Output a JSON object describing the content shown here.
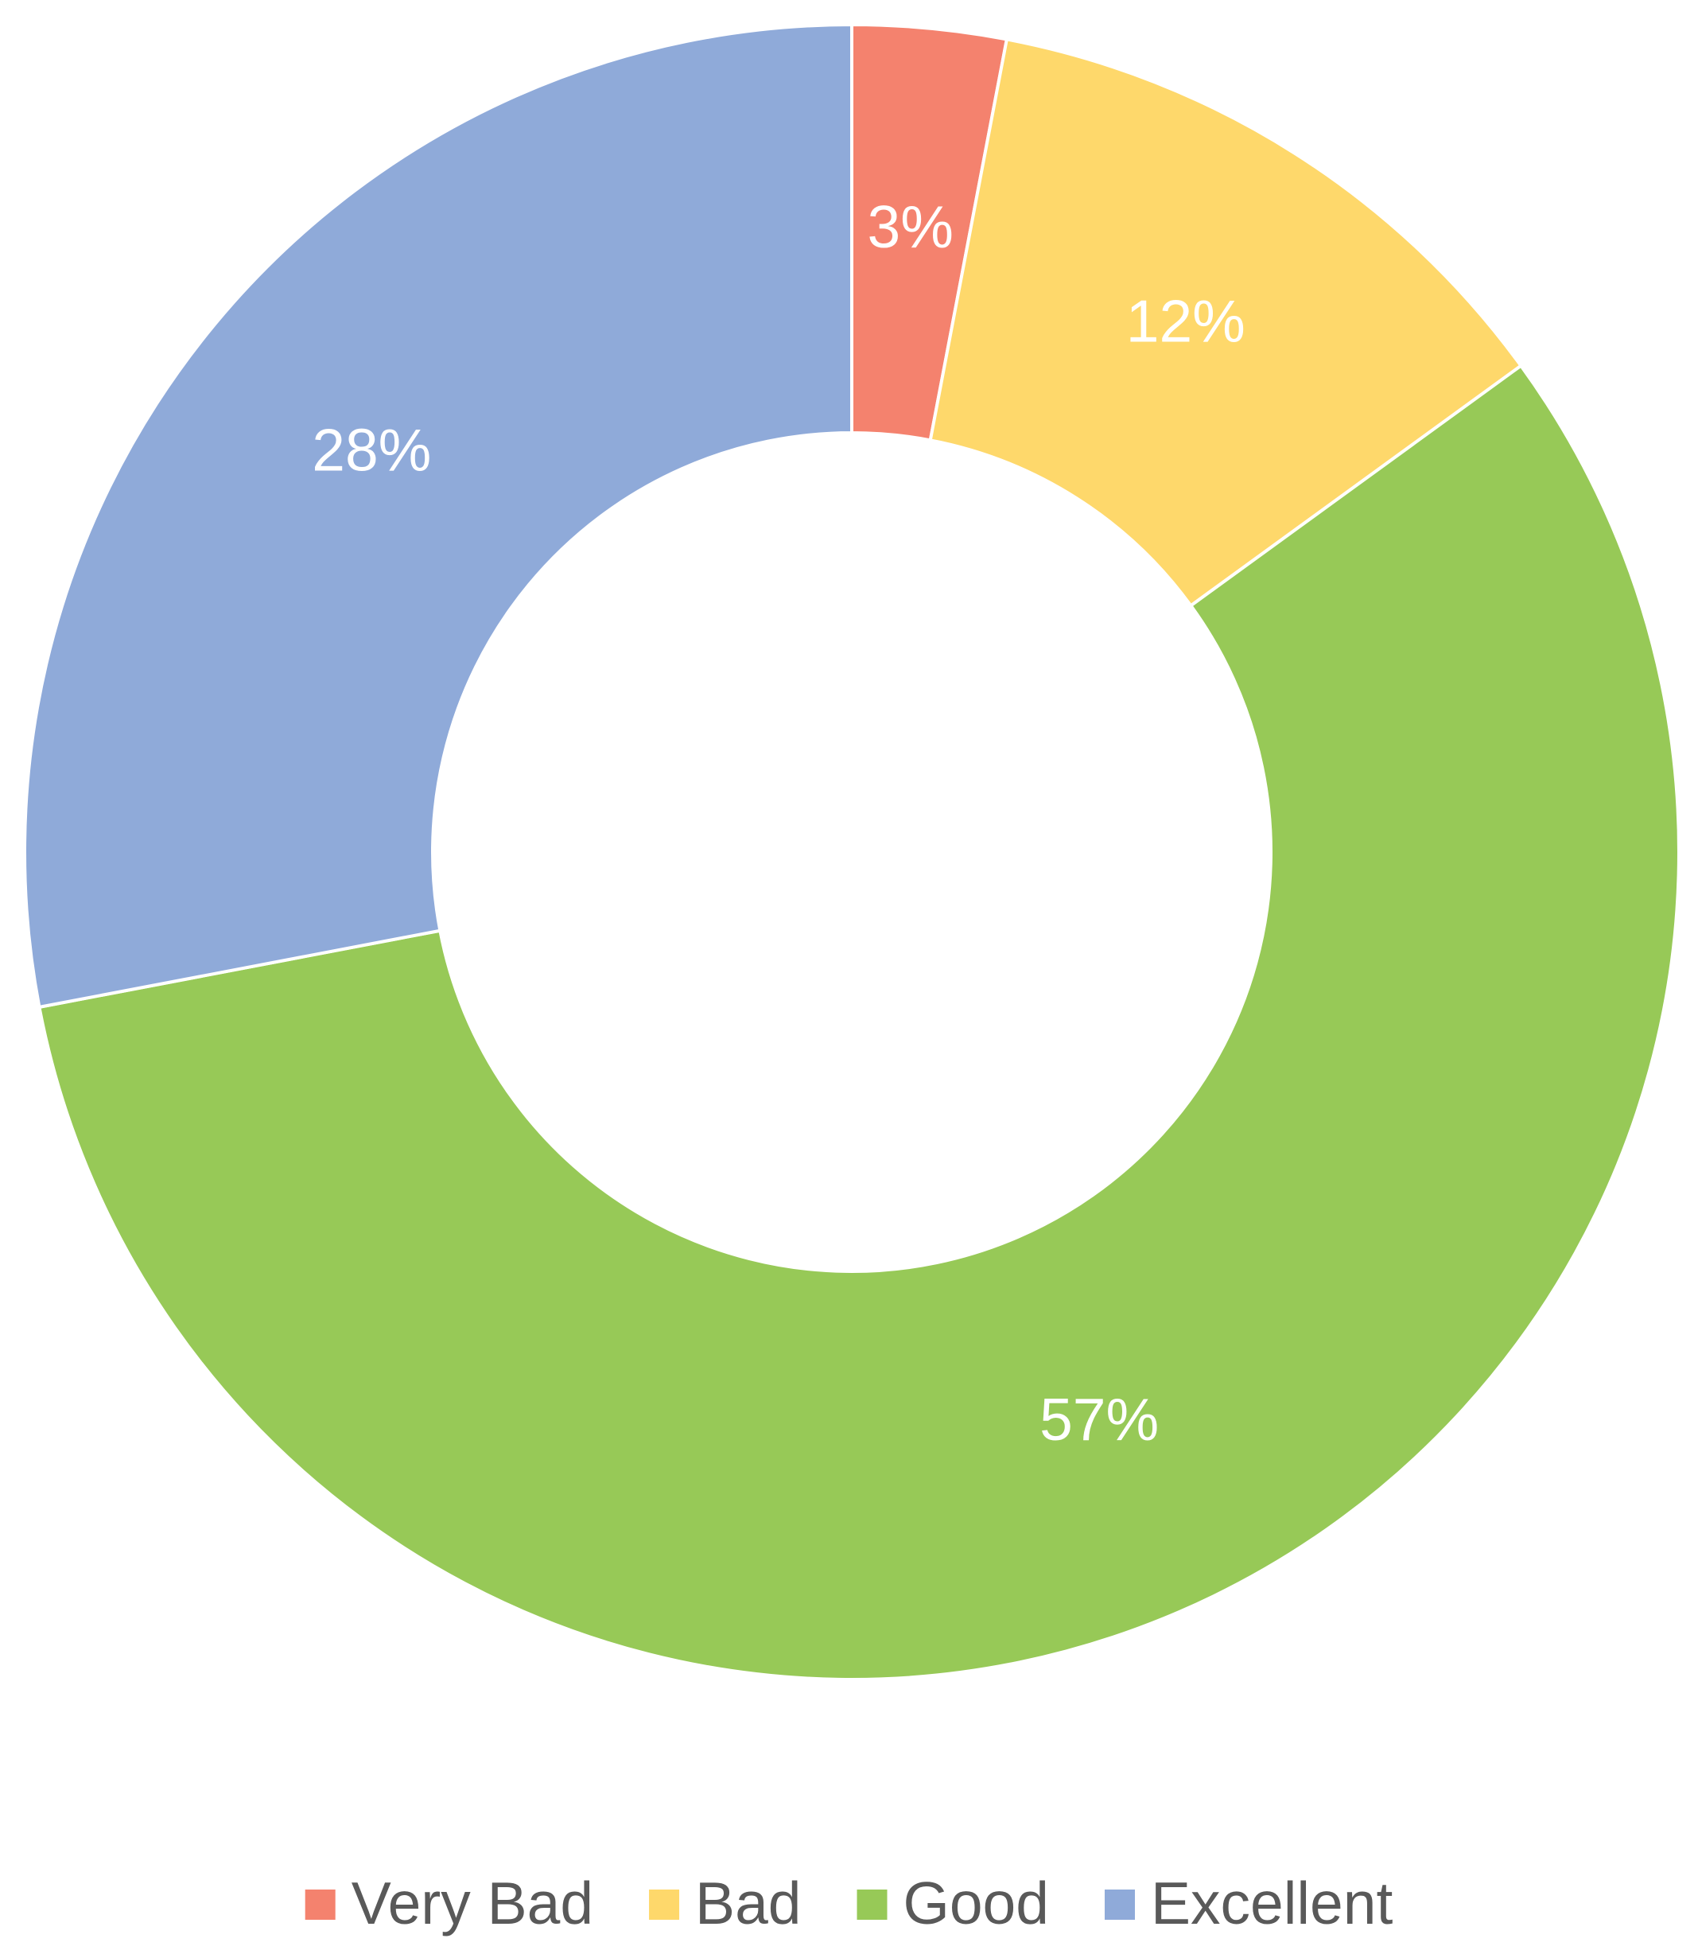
{
  "chart_data": {
    "type": "doughnut",
    "categories": [
      "Very Bad",
      "Bad",
      "Good",
      "Excellent"
    ],
    "values": [
      3,
      12,
      57,
      28
    ],
    "value_labels": [
      "3%",
      "12%",
      "57%",
      "28%"
    ],
    "colors": [
      "#f4826e",
      "#fed86b",
      "#97c957",
      "#8faad9"
    ],
    "legend": "bottom"
  }
}
